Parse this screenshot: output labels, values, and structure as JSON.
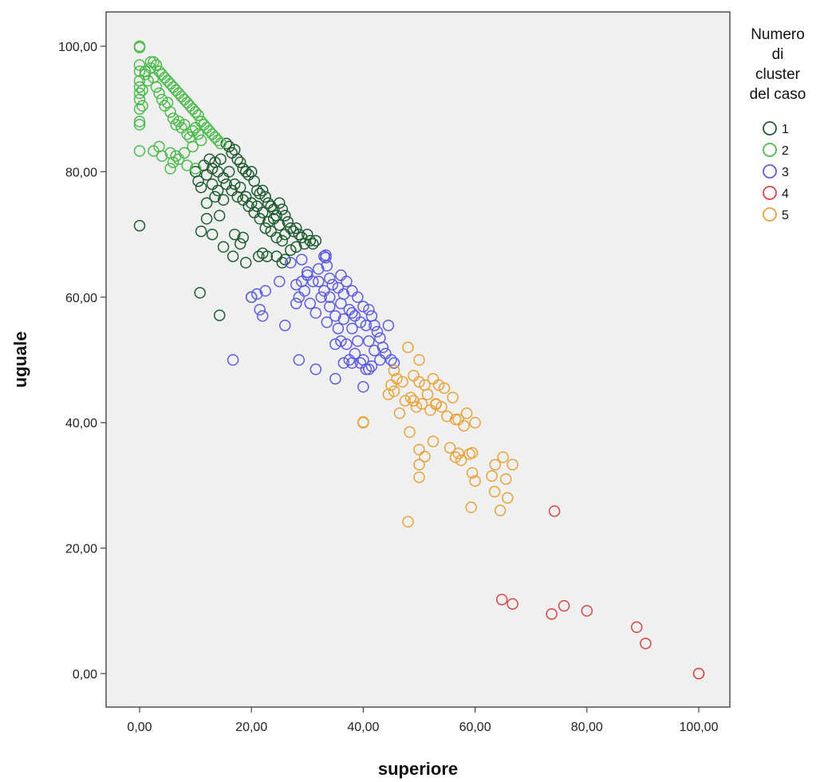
{
  "chart_data": {
    "type": "scatter",
    "title": "",
    "xlabel": "superiore",
    "ylabel": "uguale",
    "xlim": [
      -6,
      105
    ],
    "ylim": [
      -6,
      106
    ],
    "xticks": [
      0,
      20,
      40,
      60,
      80,
      100
    ],
    "yticks": [
      0,
      20,
      40,
      60,
      80,
      100
    ],
    "xtick_labels": [
      "0,00",
      "20,00",
      "40,00",
      "60,00",
      "80,00",
      "100,00"
    ],
    "ytick_labels": [
      "0,00",
      "20,00",
      "40,00",
      "60,00",
      "80,00",
      "100,00"
    ],
    "grid": false,
    "marker": "open-circle",
    "background": "#f0f0f0",
    "legend": {
      "title": "Numero di cluster del caso",
      "title_lines": [
        "Numero",
        "di",
        "cluster",
        "del caso"
      ],
      "position": "right",
      "entries": [
        "1",
        "2",
        "3",
        "4",
        "5"
      ]
    },
    "series": [
      {
        "name": "1",
        "color": "#1e5c30",
        "x": [
          0,
          10,
          10.5,
          11,
          11.5,
          12,
          12,
          12.5,
          13,
          13,
          13.5,
          13.5,
          14,
          14,
          14.5,
          15,
          15,
          15.5,
          15.5,
          16,
          16,
          16.5,
          16.5,
          17,
          17,
          17.5,
          17.5,
          18,
          18,
          18.5,
          18.5,
          19,
          19,
          19.5,
          19.5,
          20,
          20,
          20.5,
          20.5,
          21,
          21,
          21.5,
          21.5,
          22,
          22,
          22.5,
          22.5,
          23,
          23,
          23.5,
          23.5,
          24,
          24,
          24.5,
          24.5,
          25,
          25,
          25.5,
          25.5,
          26,
          26,
          26.5,
          27,
          27,
          27.5,
          28,
          28,
          28.5,
          29,
          29.5,
          30,
          30.5,
          31,
          31.5,
          12,
          13,
          14.3,
          16.7,
          17,
          18,
          18.5,
          21.3,
          22.8,
          24.5,
          26,
          11,
          15,
          19,
          22,
          25.5,
          10.8,
          14.3,
          20
        ],
        "y": [
          71.4,
          80,
          78.5,
          77.5,
          81,
          79.5,
          75,
          82,
          80.5,
          78,
          81.5,
          76,
          80,
          77,
          82,
          79,
          75.5,
          84.5,
          78,
          84,
          80,
          83,
          77,
          83.5,
          78,
          82,
          76,
          81.5,
          77.5,
          80.5,
          75.5,
          80,
          76,
          79.5,
          74.5,
          80,
          75,
          78.5,
          73.5,
          77,
          74.5,
          76.5,
          72.5,
          77,
          73.5,
          76,
          71,
          75,
          72,
          74.5,
          70.5,
          74,
          72.5,
          73,
          69.5,
          75,
          71.5,
          74,
          69,
          73,
          70,
          72,
          71,
          67.5,
          70.5,
          71,
          68,
          70,
          69.5,
          68.5,
          70,
          69,
          68.5,
          69,
          72.5,
          70,
          73,
          66.5,
          70,
          68.5,
          69.5,
          66.5,
          66.5,
          66.5,
          66,
          70.5,
          68,
          65.5,
          67,
          65.5,
          60.7,
          57.1,
          60
        ]
      },
      {
        "name": "2",
        "color": "#4cbb4c",
        "x": [
          0,
          0,
          0,
          0,
          0,
          0,
          0,
          0,
          0,
          0,
          0,
          0,
          0.5,
          0.5,
          1,
          1,
          1.5,
          2,
          2,
          2.5,
          2.5,
          3,
          3,
          3.5,
          3.5,
          4,
          4,
          4.5,
          4.5,
          5,
          5,
          5.5,
          5.5,
          6,
          6,
          6.5,
          6.5,
          7,
          7,
          7.5,
          7.5,
          8,
          8,
          8.5,
          8.5,
          9,
          9,
          9.5,
          9.5,
          10,
          10,
          10.5,
          10.5,
          11,
          11,
          11.5,
          12,
          12.5,
          13,
          13.5,
          14,
          14.5,
          2.5,
          3.5,
          4,
          5.5,
          6,
          7,
          8,
          9.5,
          5.5,
          6.5,
          8.5,
          11,
          10
        ],
        "y": [
          100,
          99.8,
          97,
          96,
          94.5,
          93.5,
          92.5,
          91.5,
          90,
          88,
          87.5,
          83.3,
          93,
          90.5,
          96,
          95.5,
          94.5,
          97.5,
          96.5,
          95,
          97.5,
          97,
          93.5,
          96,
          92.5,
          95.5,
          91.5,
          95,
          90.5,
          94.5,
          91,
          94,
          89.5,
          93.5,
          88.5,
          93,
          87.5,
          92.5,
          88,
          92,
          87,
          91.5,
          87.5,
          91,
          86,
          90.5,
          85.5,
          90,
          86.5,
          89.5,
          87,
          89,
          86,
          88,
          85,
          87.5,
          87,
          86.5,
          86,
          85.5,
          85,
          84.5,
          83.3,
          84,
          82.5,
          83,
          81.5,
          82,
          83,
          84,
          80.5,
          82.5,
          81,
          88,
          80.5
        ]
      },
      {
        "name": "3",
        "color": "#5c5ce0",
        "x": [
          20,
          21,
          21.5,
          22,
          22.5,
          25,
          26,
          27,
          28,
          28.5,
          29,
          29.5,
          30,
          30.5,
          31,
          31.5,
          32,
          32.5,
          33,
          33,
          33.5,
          33.5,
          34,
          34,
          34.5,
          35,
          35,
          35.5,
          35.5,
          36,
          36,
          36.5,
          36.5,
          37,
          37,
          37.5,
          37.5,
          38,
          38,
          38.5,
          38.5,
          39,
          39,
          39.5,
          39.5,
          40,
          40,
          40.5,
          40.5,
          41,
          41,
          41.5,
          41.5,
          42,
          42,
          42.5,
          43,
          43.5,
          44,
          44.5,
          45,
          45.5,
          16.7,
          28.5,
          31.5,
          35,
          36.5,
          38,
          40,
          41,
          43,
          33.3,
          33.3,
          30,
          32,
          34,
          36,
          38,
          28,
          29
        ],
        "y": [
          60,
          60.5,
          58,
          57,
          61,
          62.5,
          55.5,
          65.5,
          62,
          60,
          66,
          61,
          64,
          59,
          62.5,
          57.5,
          64.5,
          60,
          66.5,
          61,
          65,
          56,
          63,
          58.5,
          62,
          57,
          52.5,
          61.5,
          55,
          63.5,
          53,
          60.5,
          56.5,
          62.5,
          52.5,
          58,
          50,
          61,
          55,
          57,
          51,
          60,
          53,
          56,
          49.5,
          58.5,
          50,
          55.5,
          48.5,
          58,
          53,
          57,
          49,
          55.5,
          51.5,
          54.5,
          53.5,
          52,
          51,
          55.5,
          50,
          49.5,
          50,
          50,
          48.5,
          47,
          49.5,
          49.5,
          45.7,
          48.5,
          50,
          66.7,
          66.3,
          63.5,
          62.5,
          60,
          59,
          57.5,
          59,
          62.5
        ]
      },
      {
        "name": "4",
        "color": "#d64545",
        "x": [
          64.8,
          66.7,
          73.7,
          74.2,
          75.9,
          80,
          88.9,
          90.5,
          100,
          100
        ],
        "y": [
          11.8,
          11.1,
          9.5,
          25.9,
          10.8,
          10,
          7.4,
          4.8,
          0,
          0
        ]
      },
      {
        "name": "5",
        "color": "#e8a23a",
        "x": [
          40,
          40,
          44.5,
          45,
          45.5,
          46,
          46.5,
          47,
          47.5,
          48,
          48.5,
          49,
          49.5,
          50,
          50,
          50.5,
          51,
          51.5,
          52,
          52.5,
          53,
          53.5,
          54,
          54.5,
          55,
          55.5,
          56,
          56.5,
          57,
          57.5,
          58,
          58.5,
          59,
          59.5,
          60,
          63,
          63.5,
          64.5,
          65,
          65.5,
          65.8,
          66.7,
          48,
          48.3,
          49,
          50,
          50,
          50,
          51,
          52.5,
          53,
          56.5,
          57,
          59.3,
          60,
          63.6,
          59.5,
          45.5
        ],
        "y": [
          40,
          40.1,
          44.5,
          46,
          45,
          47,
          41.5,
          46.5,
          43.5,
          52,
          44,
          47.5,
          42.5,
          50,
          46.5,
          43,
          46,
          44.5,
          42,
          47,
          43,
          46,
          42.5,
          45.5,
          41,
          36,
          44,
          34.5,
          40.5,
          34,
          39.5,
          41.5,
          35,
          32,
          40,
          31.5,
          29,
          26,
          34.5,
          31,
          28,
          33.3,
          24.2,
          38.5,
          43.5,
          33.3,
          31.3,
          35.7,
          34.6,
          37,
          42.9,
          40.5,
          35.1,
          26.5,
          30.7,
          33.3,
          35.2,
          48.3
        ]
      }
    ]
  }
}
